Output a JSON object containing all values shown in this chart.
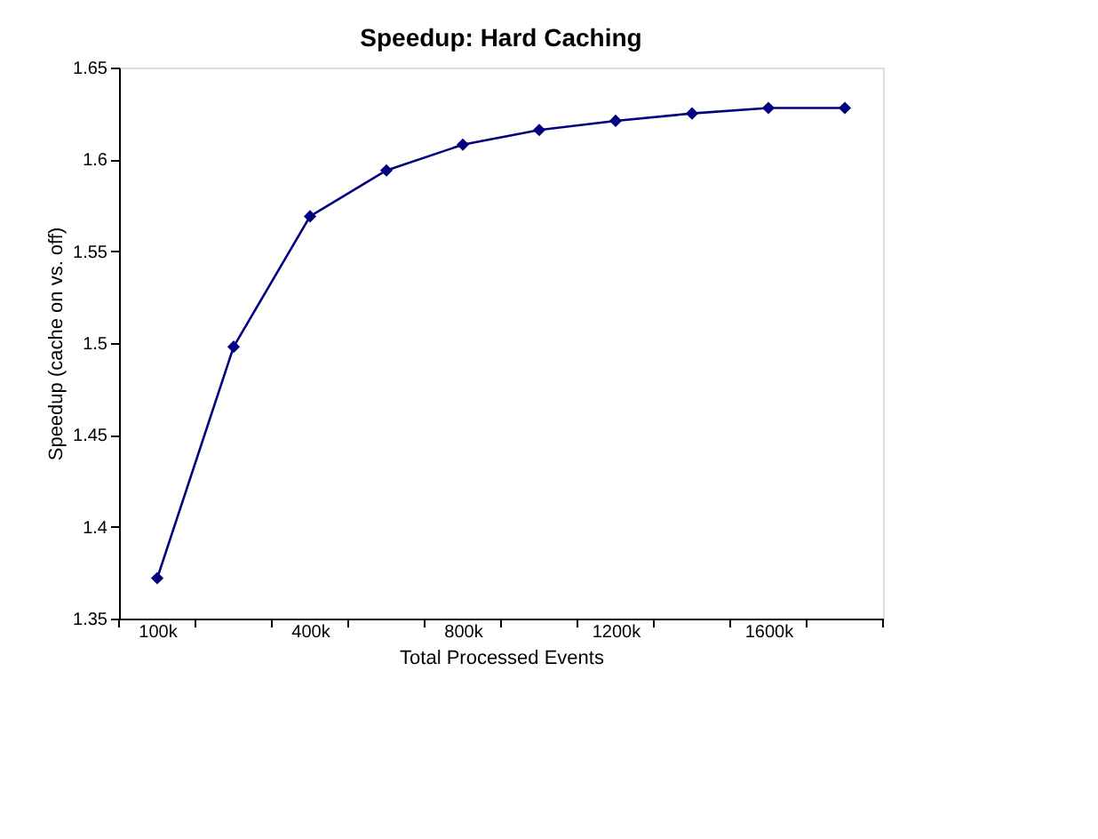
{
  "chart_data": {
    "type": "line",
    "title": "Speedup: Hard Caching",
    "xlabel": "Total Processed Events",
    "ylabel": "Speedup (cache on vs. off)",
    "categories": [
      "100k",
      null,
      "400k",
      null,
      "800k",
      null,
      "1200k",
      null,
      "1600k",
      null
    ],
    "series": [
      {
        "color": "#000080",
        "values": [
          1.372,
          1.498,
          1.569,
          1.594,
          1.608,
          1.616,
          1.621,
          1.625,
          1.628,
          1.628
        ]
      }
    ],
    "ylim": [
      1.35,
      1.65
    ],
    "yticks": [
      1.35,
      1.4,
      1.45,
      1.5,
      1.55,
      1.6,
      1.65
    ],
    "grid": false,
    "legend": false,
    "marker": "diamond",
    "line_style": "solid"
  }
}
